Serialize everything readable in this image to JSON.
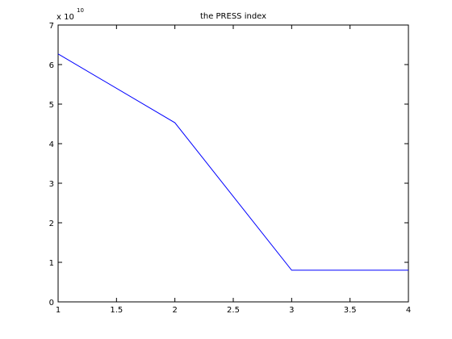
{
  "chart_data": {
    "type": "line",
    "title": "the PRESS index",
    "xlabel": "",
    "ylabel": "",
    "xlim": [
      1,
      4
    ],
    "ylim": [
      0,
      7
    ],
    "y_scale_label": "x 10",
    "y_scale_exponent": "10",
    "x_ticks": [
      1,
      1.5,
      2,
      2.5,
      3,
      3.5,
      4
    ],
    "x_tick_labels": [
      "1",
      "1.5",
      "2",
      "2.5",
      "3",
      "3.5",
      "4"
    ],
    "y_ticks": [
      0,
      1,
      2,
      3,
      4,
      5,
      6,
      7
    ],
    "y_tick_labels": [
      "0",
      "1",
      "2",
      "3",
      "4",
      "5",
      "6",
      "7"
    ],
    "grid": false,
    "series": [
      {
        "name": "PRESS",
        "color": "#0000ff",
        "x": [
          1,
          2,
          3,
          4
        ],
        "y": [
          6.27,
          4.53,
          0.8,
          0.8
        ]
      }
    ]
  }
}
